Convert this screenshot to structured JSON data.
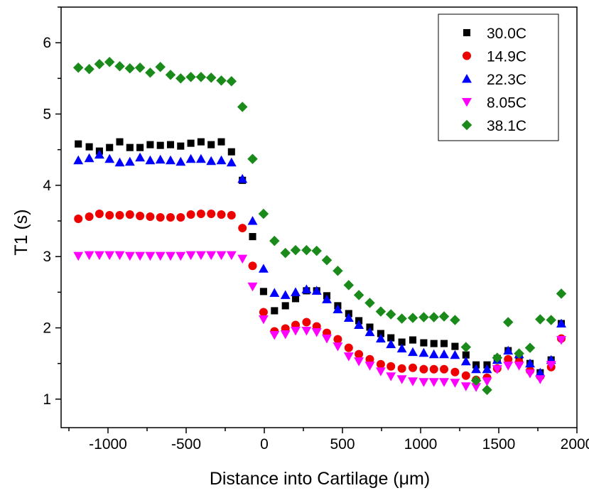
{
  "chart_data": {
    "type": "scatter",
    "xlabel": "Distance into Cartilage (μm)",
    "ylabel": "T1 (s)",
    "xlim": [
      -1300,
      2000
    ],
    "ylim": [
      0.6,
      6.5
    ],
    "x_ticks": [
      -1000,
      -500,
      0,
      500,
      1000,
      1500,
      2000
    ],
    "x_tick_labels": [
      "-1000",
      "-500",
      "0",
      "500",
      "1000",
      "1500",
      "2000"
    ],
    "y_ticks": [
      1,
      2,
      3,
      4,
      5,
      6
    ],
    "y_tick_labels": [
      "1",
      "2",
      "3",
      "4",
      "5",
      "6"
    ],
    "legend_position": "top-right",
    "series": [
      {
        "name": "30.0C",
        "marker": "square",
        "color": "#000000",
        "points": [
          [
            -1190,
            4.58
          ],
          [
            -1120,
            4.54
          ],
          [
            -1055,
            4.48
          ],
          [
            -990,
            4.53
          ],
          [
            -925,
            4.61
          ],
          [
            -860,
            4.53
          ],
          [
            -795,
            4.53
          ],
          [
            -730,
            4.57
          ],
          [
            -665,
            4.56
          ],
          [
            -600,
            4.57
          ],
          [
            -535,
            4.55
          ],
          [
            -470,
            4.59
          ],
          [
            -405,
            4.61
          ],
          [
            -340,
            4.57
          ],
          [
            -275,
            4.61
          ],
          [
            -210,
            4.47
          ],
          [
            -140,
            4.07
          ],
          [
            -75,
            3.28
          ],
          [
            -5,
            2.51
          ],
          [
            65,
            2.24
          ],
          [
            135,
            2.31
          ],
          [
            200,
            2.41
          ],
          [
            270,
            2.52
          ],
          [
            335,
            2.52
          ],
          [
            400,
            2.45
          ],
          [
            470,
            2.31
          ],
          [
            540,
            2.2
          ],
          [
            605,
            2.1
          ],
          [
            675,
            2.01
          ],
          [
            745,
            1.92
          ],
          [
            810,
            1.86
          ],
          [
            880,
            1.8
          ],
          [
            950,
            1.83
          ],
          [
            1020,
            1.79
          ],
          [
            1085,
            1.78
          ],
          [
            1150,
            1.78
          ],
          [
            1220,
            1.74
          ],
          [
            1290,
            1.62
          ],
          [
            1355,
            1.48
          ],
          [
            1425,
            1.48
          ],
          [
            1490,
            1.57
          ],
          [
            1560,
            1.68
          ],
          [
            1630,
            1.58
          ],
          [
            1700,
            1.5
          ],
          [
            1765,
            1.37
          ],
          [
            1835,
            1.55
          ],
          [
            1900,
            2.06
          ]
        ]
      },
      {
        "name": "14.9C",
        "marker": "circle",
        "color": "#ee0000",
        "points": [
          [
            -1190,
            3.53
          ],
          [
            -1120,
            3.56
          ],
          [
            -1055,
            3.6
          ],
          [
            -990,
            3.58
          ],
          [
            -925,
            3.58
          ],
          [
            -860,
            3.59
          ],
          [
            -795,
            3.57
          ],
          [
            -730,
            3.56
          ],
          [
            -665,
            3.55
          ],
          [
            -600,
            3.55
          ],
          [
            -535,
            3.55
          ],
          [
            -470,
            3.59
          ],
          [
            -405,
            3.6
          ],
          [
            -340,
            3.6
          ],
          [
            -275,
            3.59
          ],
          [
            -210,
            3.58
          ],
          [
            -140,
            3.4
          ],
          [
            -75,
            2.87
          ],
          [
            -5,
            2.22
          ],
          [
            65,
            1.95
          ],
          [
            135,
            1.99
          ],
          [
            200,
            2.04
          ],
          [
            270,
            2.08
          ],
          [
            335,
            2.02
          ],
          [
            400,
            1.93
          ],
          [
            470,
            1.84
          ],
          [
            540,
            1.72
          ],
          [
            605,
            1.63
          ],
          [
            675,
            1.56
          ],
          [
            745,
            1.49
          ],
          [
            810,
            1.46
          ],
          [
            880,
            1.43
          ],
          [
            950,
            1.44
          ],
          [
            1020,
            1.42
          ],
          [
            1085,
            1.42
          ],
          [
            1150,
            1.42
          ],
          [
            1220,
            1.38
          ],
          [
            1290,
            1.33
          ],
          [
            1355,
            1.27
          ],
          [
            1425,
            1.3
          ],
          [
            1490,
            1.43
          ],
          [
            1560,
            1.56
          ],
          [
            1630,
            1.52
          ],
          [
            1700,
            1.4
          ],
          [
            1765,
            1.32
          ],
          [
            1835,
            1.45
          ],
          [
            1900,
            1.85
          ]
        ]
      },
      {
        "name": "22.3C",
        "marker": "triangle-up",
        "color": "#0000ff",
        "points": [
          [
            -1190,
            4.35
          ],
          [
            -1120,
            4.38
          ],
          [
            -1055,
            4.43
          ],
          [
            -990,
            4.37
          ],
          [
            -925,
            4.32
          ],
          [
            -860,
            4.33
          ],
          [
            -795,
            4.39
          ],
          [
            -730,
            4.35
          ],
          [
            -665,
            4.36
          ],
          [
            -600,
            4.35
          ],
          [
            -535,
            4.33
          ],
          [
            -470,
            4.37
          ],
          [
            -405,
            4.37
          ],
          [
            -340,
            4.34
          ],
          [
            -275,
            4.35
          ],
          [
            -210,
            4.32
          ],
          [
            -140,
            4.09
          ],
          [
            -75,
            3.5
          ],
          [
            -5,
            2.83
          ],
          [
            65,
            2.49
          ],
          [
            135,
            2.46
          ],
          [
            200,
            2.5
          ],
          [
            270,
            2.54
          ],
          [
            335,
            2.52
          ],
          [
            400,
            2.4
          ],
          [
            470,
            2.26
          ],
          [
            540,
            2.14
          ],
          [
            605,
            2.04
          ],
          [
            675,
            1.94
          ],
          [
            745,
            1.85
          ],
          [
            810,
            1.77
          ],
          [
            880,
            1.71
          ],
          [
            950,
            1.66
          ],
          [
            1020,
            1.65
          ],
          [
            1085,
            1.63
          ],
          [
            1150,
            1.63
          ],
          [
            1220,
            1.62
          ],
          [
            1290,
            1.53
          ],
          [
            1355,
            1.42
          ],
          [
            1425,
            1.42
          ],
          [
            1490,
            1.55
          ],
          [
            1560,
            1.68
          ],
          [
            1630,
            1.63
          ],
          [
            1700,
            1.5
          ],
          [
            1765,
            1.37
          ],
          [
            1835,
            1.55
          ],
          [
            1900,
            2.06
          ]
        ]
      },
      {
        "name": "8.05C",
        "marker": "triangle-down",
        "color": "#ff00ff",
        "points": [
          [
            -1190,
            3.01
          ],
          [
            -1120,
            3.02
          ],
          [
            -1055,
            3.02
          ],
          [
            -990,
            3.02
          ],
          [
            -925,
            3.02
          ],
          [
            -860,
            3.01
          ],
          [
            -795,
            3.01
          ],
          [
            -730,
            3.01
          ],
          [
            -665,
            3.01
          ],
          [
            -600,
            3.01
          ],
          [
            -535,
            3.01
          ],
          [
            -470,
            3.02
          ],
          [
            -405,
            3.02
          ],
          [
            -340,
            3.02
          ],
          [
            -275,
            3.02
          ],
          [
            -210,
            3.02
          ],
          [
            -140,
            2.97
          ],
          [
            -75,
            2.58
          ],
          [
            -5,
            2.12
          ],
          [
            65,
            1.9
          ],
          [
            135,
            1.91
          ],
          [
            200,
            1.96
          ],
          [
            270,
            1.96
          ],
          [
            335,
            1.94
          ],
          [
            400,
            1.85
          ],
          [
            470,
            1.74
          ],
          [
            540,
            1.6
          ],
          [
            605,
            1.53
          ],
          [
            675,
            1.47
          ],
          [
            745,
            1.39
          ],
          [
            810,
            1.32
          ],
          [
            880,
            1.28
          ],
          [
            950,
            1.25
          ],
          [
            1020,
            1.24
          ],
          [
            1085,
            1.24
          ],
          [
            1150,
            1.24
          ],
          [
            1220,
            1.23
          ],
          [
            1290,
            1.18
          ],
          [
            1355,
            1.17
          ],
          [
            1425,
            1.25
          ],
          [
            1490,
            1.42
          ],
          [
            1560,
            1.47
          ],
          [
            1630,
            1.47
          ],
          [
            1700,
            1.36
          ],
          [
            1765,
            1.28
          ],
          [
            1835,
            1.48
          ],
          [
            1900,
            1.83
          ]
        ]
      },
      {
        "name": "38.1C",
        "marker": "diamond",
        "color": "#1a8a1a",
        "points": [
          [
            -1190,
            5.65
          ],
          [
            -1120,
            5.63
          ],
          [
            -1055,
            5.7
          ],
          [
            -990,
            5.73
          ],
          [
            -925,
            5.67
          ],
          [
            -860,
            5.64
          ],
          [
            -795,
            5.65
          ],
          [
            -730,
            5.58
          ],
          [
            -665,
            5.66
          ],
          [
            -600,
            5.55
          ],
          [
            -535,
            5.5
          ],
          [
            -470,
            5.52
          ],
          [
            -405,
            5.52
          ],
          [
            -340,
            5.51
          ],
          [
            -275,
            5.47
          ],
          [
            -210,
            5.46
          ],
          [
            -140,
            5.1
          ],
          [
            -75,
            4.37
          ],
          [
            -5,
            3.6
          ],
          [
            65,
            3.22
          ],
          [
            135,
            3.05
          ],
          [
            200,
            3.09
          ],
          [
            270,
            3.09
          ],
          [
            335,
            3.08
          ],
          [
            400,
            2.95
          ],
          [
            470,
            2.8
          ],
          [
            540,
            2.6
          ],
          [
            605,
            2.46
          ],
          [
            675,
            2.35
          ],
          [
            745,
            2.23
          ],
          [
            810,
            2.19
          ],
          [
            880,
            2.13
          ],
          [
            950,
            2.14
          ],
          [
            1020,
            2.15
          ],
          [
            1085,
            2.15
          ],
          [
            1150,
            2.16
          ],
          [
            1220,
            2.11
          ],
          [
            1290,
            1.73
          ],
          [
            1355,
            1.26
          ],
          [
            1425,
            1.13
          ],
          [
            1490,
            1.58
          ],
          [
            1560,
            2.08
          ],
          [
            1630,
            1.64
          ],
          [
            1700,
            1.72
          ],
          [
            1765,
            2.12
          ],
          [
            1835,
            2.11
          ],
          [
            1900,
            2.48
          ]
        ]
      }
    ]
  }
}
